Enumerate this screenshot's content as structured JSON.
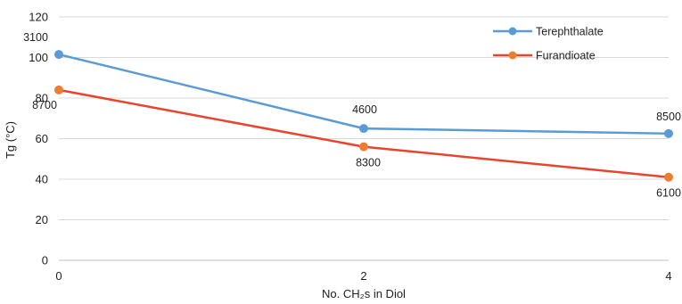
{
  "chart_data": {
    "type": "line",
    "x": [
      0,
      2,
      4
    ],
    "xticks": [
      "0",
      "2",
      "4"
    ],
    "xlabel": "No. CH₂s in Diol",
    "ylabel": "Tg (°C)",
    "ylim": [
      0,
      120
    ],
    "yticks": [
      "0",
      "20",
      "40",
      "60",
      "80",
      "100",
      "120"
    ],
    "grid": true,
    "legend_position": "top-right",
    "series": [
      {
        "name": "Terephthalate",
        "color": "#5b9bd5",
        "values": [
          101.5,
          65,
          62.5
        ],
        "labels": [
          "3100",
          "4600",
          "8500"
        ]
      },
      {
        "name": "Furandioate",
        "color": "#e8442e",
        "marker_color": "#ed7d31",
        "values": [
          84,
          56,
          41
        ],
        "labels": [
          "8700",
          "8300",
          "6100"
        ]
      }
    ]
  }
}
